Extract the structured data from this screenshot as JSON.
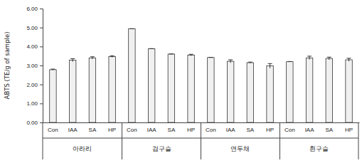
{
  "chart_data": {
    "type": "bar",
    "y_label": "ABTS (TE/g of sample)",
    "categories": [
      "Con",
      "IAA",
      "SA",
      "HP",
      "Con",
      "IAA",
      "SA",
      "HP",
      "Con",
      "IAA",
      "SA",
      "HP",
      "Con",
      "IAA",
      "SA",
      "HP"
    ],
    "groups": [
      "아라리",
      "검구슬",
      "연두채",
      "흰구슬"
    ],
    "values": [
      2.78,
      3.28,
      3.4,
      3.47,
      4.93,
      3.88,
      3.6,
      3.55,
      3.42,
      3.22,
      3.15,
      2.98,
      3.2,
      3.4,
      3.37,
      3.3
    ],
    "errors": [
      0.03,
      0.08,
      0.06,
      0.04,
      0.01,
      0.01,
      0.01,
      0.04,
      0.01,
      0.08,
      0.03,
      0.12,
      0.01,
      0.09,
      0.07,
      0.08
    ],
    "color": "#f0f0f0",
    "ylim": [
      0,
      6
    ],
    "yticks": [
      {
        "value": 0,
        "label": "0.00"
      },
      {
        "value": 1,
        "label": "1.00"
      },
      {
        "value": 2,
        "label": "2.00"
      },
      {
        "value": 3,
        "label": "3.00"
      },
      {
        "value": 4,
        "label": "4.00"
      },
      {
        "value": 5,
        "label": "5.00"
      },
      {
        "value": 6,
        "label": "6.00"
      }
    ],
    "grid": false
  }
}
